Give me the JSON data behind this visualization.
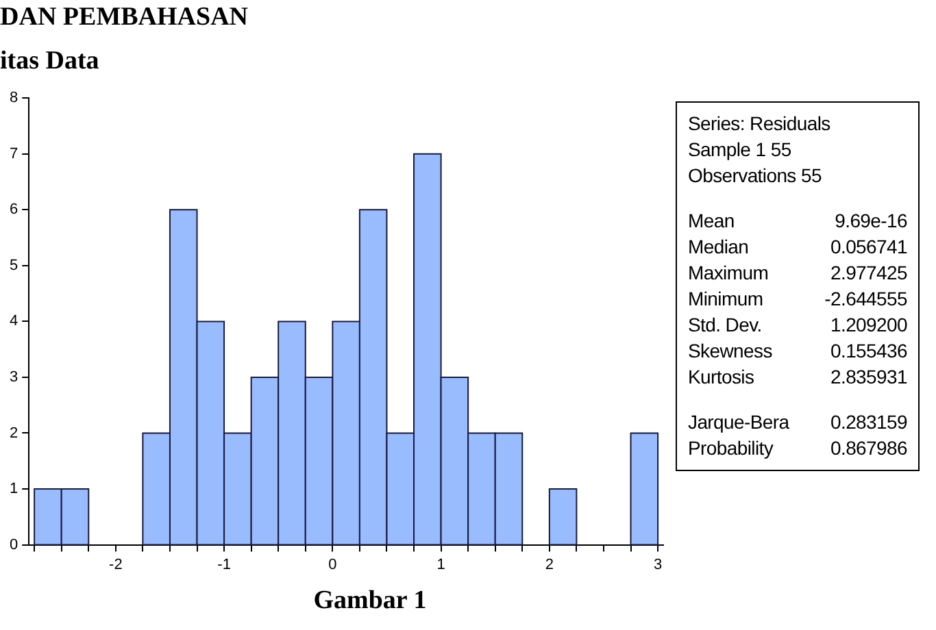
{
  "chart_data": {
    "type": "histogram",
    "bins": [
      -2.75,
      -2.5,
      -2.25,
      -2.0,
      -1.75,
      -1.5,
      -1.25,
      -1.0,
      -0.75,
      -0.5,
      -0.25,
      0,
      0.25,
      0.5,
      0.75,
      1.0,
      1.25,
      1.5,
      1.75,
      2.0,
      2.25,
      2.5,
      2.75,
      3.0
    ],
    "values": [
      1,
      1,
      0,
      0,
      2,
      6,
      4,
      2,
      3,
      4,
      3,
      4,
      6,
      2,
      7,
      3,
      2,
      2,
      0,
      1,
      0,
      0,
      2
    ],
    "color": "#99bbff",
    "xlim": [
      -2.8,
      3.05
    ],
    "xticks": [
      {
        "value": -2.75,
        "label": null
      },
      {
        "value": -2.5,
        "label": null
      },
      {
        "value": -2.25,
        "label": null
      },
      -2,
      {
        "value": -1.75,
        "label": null
      },
      {
        "value": -1.5,
        "label": null
      },
      {
        "value": -1.25,
        "label": null
      },
      -1,
      {
        "value": -0.75,
        "label": null
      },
      {
        "value": -0.5,
        "label": null
      },
      {
        "value": -0.25,
        "label": null
      },
      0,
      {
        "value": 0.25,
        "label": null
      },
      {
        "value": 0.5,
        "label": null
      },
      {
        "value": 0.75,
        "label": null
      },
      1,
      {
        "value": 1.25,
        "label": null
      },
      {
        "value": 1.5,
        "label": null
      },
      {
        "value": 1.75,
        "label": null
      },
      2,
      {
        "value": 2.25,
        "label": null
      },
      {
        "value": 2.5,
        "label": null
      },
      {
        "value": 2.75,
        "label": null
      },
      3
    ],
    "ylim": [
      0,
      8
    ],
    "yticks": [
      0,
      1,
      2,
      3,
      4,
      5,
      6,
      7,
      8
    ],
    "grid": false,
    "legend": false,
    "annotations": [
      "DAN PEMBAHASAN",
      "itas Data",
      "Series: Residuals",
      "Sample 1 55",
      "Observations 55",
      "Mean 9.69e-16",
      "Median 0.056741",
      "Maximum 2.977425",
      "Minimum -2.644555",
      "Std. Dev. 1.209200",
      "Skewness 0.155436",
      "Kurtosis 2.835931",
      "Jarque-Bera 0.283159",
      "Probability 0.867986",
      "Gambar 1"
    ]
  }
}
